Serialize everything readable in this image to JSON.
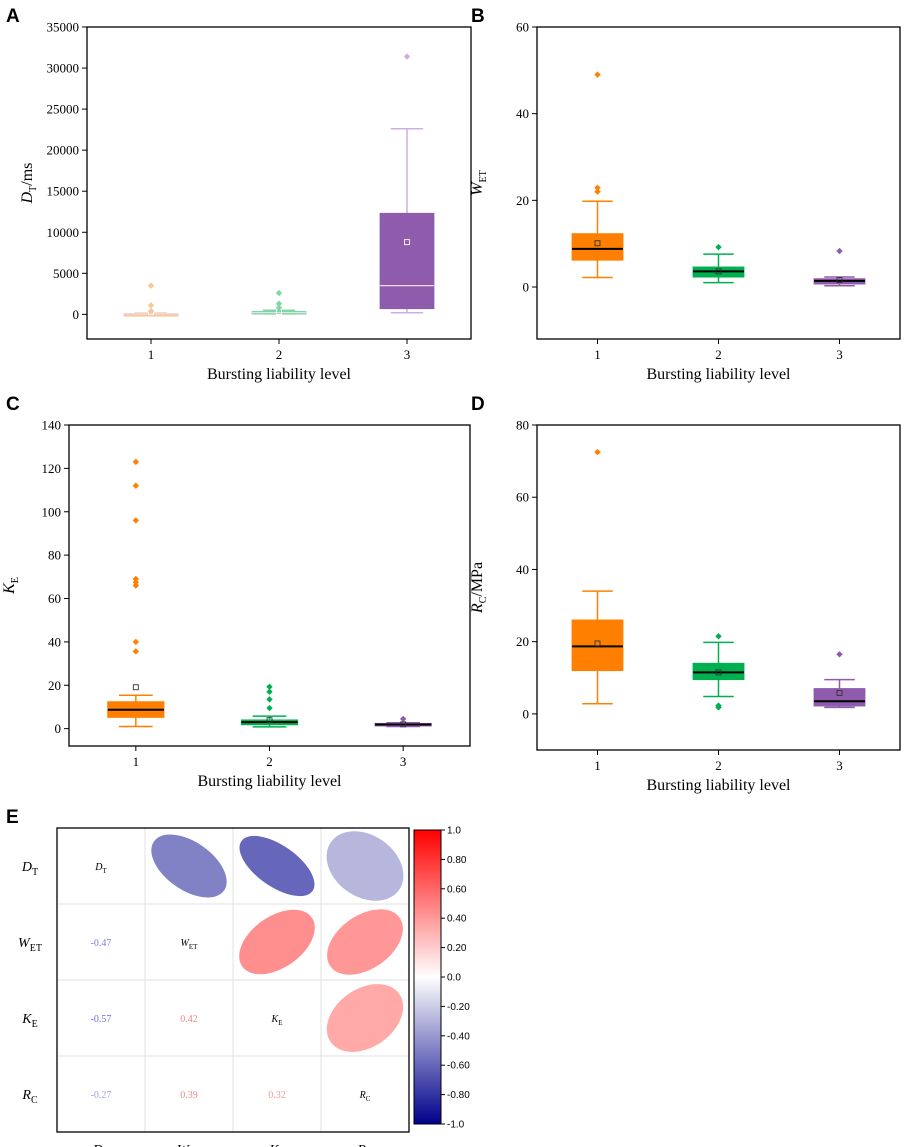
{
  "chart_data": [
    {
      "panel": "A",
      "type": "box",
      "xlabel": "Bursting liability level",
      "ylabel": {
        "main": "D",
        "sub": "T",
        "suffix": "/ms"
      },
      "ylim": [
        -3000,
        35000
      ],
      "yticks": [
        0,
        5000,
        10000,
        15000,
        20000,
        25000,
        30000,
        35000
      ],
      "categories": [
        "1",
        "2",
        "3"
      ],
      "colors": [
        "#F9C59A",
        "#7ED9A0",
        "#8E5BAD"
      ],
      "whisker_colors": [
        "#F9C59A",
        "#7ED9A0",
        "#CDB0DC"
      ],
      "boxes": [
        {
          "q1": 30,
          "median": 60,
          "q3": 100,
          "low": 0,
          "high": 150,
          "mean": 300,
          "outliers": [
            1100,
            400,
            3500
          ]
        },
        {
          "q1": 150,
          "median": 220,
          "q3": 350,
          "low": 60,
          "high": 500,
          "mean": 300,
          "outliers": [
            800,
            1300,
            2600
          ]
        },
        {
          "q1": 700,
          "median": 3500,
          "q3": 12300,
          "low": 200,
          "high": 22600,
          "mean": 8800,
          "outliers": [
            31400
          ]
        }
      ]
    },
    {
      "panel": "B",
      "type": "box",
      "xlabel": "Bursting liability level",
      "ylabel": {
        "main": "W",
        "sub": "ET",
        "suffix": ""
      },
      "ylim": [
        -12,
        60
      ],
      "yticks": [
        0,
        20,
        40,
        60
      ],
      "categories": [
        "1",
        "2",
        "3"
      ],
      "colors": [
        "#FF8000",
        "#00B050",
        "#8E5BAD"
      ],
      "whisker_colors": [
        "#FF8000",
        "#00B050",
        "#8E5BAD"
      ],
      "boxes": [
        {
          "q1": 6.2,
          "median": 8.8,
          "q3": 12.3,
          "low": 2.2,
          "high": 19.8,
          "mean": 10.1,
          "outliers": [
            22.0,
            22.9,
            49.0
          ]
        },
        {
          "q1": 2.3,
          "median": 3.6,
          "q3": 4.6,
          "low": 1.0,
          "high": 7.6,
          "mean": 3.6,
          "outliers": [
            9.2
          ]
        },
        {
          "q1": 0.7,
          "median": 1.4,
          "q3": 1.9,
          "low": 0.3,
          "high": 2.3,
          "mean": 1.6,
          "outliers": [
            8.3
          ]
        }
      ]
    },
    {
      "panel": "C",
      "type": "box",
      "xlabel": "Bursting liability level",
      "ylabel": {
        "main": "K",
        "sub": "E",
        "suffix": ""
      },
      "ylim": [
        -8,
        140
      ],
      "yticks": [
        0,
        20,
        40,
        60,
        80,
        100,
        120,
        140
      ],
      "categories": [
        "1",
        "2",
        "3"
      ],
      "colors": [
        "#FF8000",
        "#00B050",
        "#8E5BAD"
      ],
      "whisker_colors": [
        "#FF8000",
        "#00B050",
        "#8E5BAD"
      ],
      "boxes": [
        {
          "q1": 5.2,
          "median": 8.7,
          "q3": 12.4,
          "low": 1.0,
          "high": 15.4,
          "mean": 19.1,
          "outliers": [
            35.6,
            40.0,
            66.0,
            67.5,
            69.0,
            96.0,
            112.0,
            123.0
          ]
        },
        {
          "q1": 1.8,
          "median": 3.0,
          "q3": 4.0,
          "low": 0.8,
          "high": 5.8,
          "mean": 3.9,
          "outliers": [
            9.5,
            13.5,
            17.0,
            19.3
          ]
        },
        {
          "q1": 1.3,
          "median": 1.9,
          "q3": 2.4,
          "low": 1.0,
          "high": 2.7,
          "mean": 2.0,
          "outliers": [
            4.5
          ]
        }
      ]
    },
    {
      "panel": "D",
      "type": "box",
      "xlabel": "Bursting liability level",
      "ylabel": {
        "main": "R",
        "sub": "C",
        "suffix": "/MPa"
      },
      "ylim": [
        -10,
        80
      ],
      "yticks": [
        0,
        20,
        40,
        60,
        80
      ],
      "categories": [
        "1",
        "2",
        "3"
      ],
      "colors": [
        "#FF8000",
        "#00B050",
        "#8E5BAD"
      ],
      "whisker_colors": [
        "#FF8000",
        "#00B050",
        "#8E5BAD"
      ],
      "boxes": [
        {
          "q1": 12.0,
          "median": 18.7,
          "q3": 26.0,
          "low": 2.8,
          "high": 34.0,
          "mean": 19.5,
          "outliers": [
            72.5
          ]
        },
        {
          "q1": 9.5,
          "median": 11.5,
          "q3": 14.0,
          "low": 4.8,
          "high": 19.8,
          "mean": 11.5,
          "outliers": [
            1.8,
            2.3,
            21.5
          ]
        },
        {
          "q1": 2.2,
          "median": 3.5,
          "q3": 7.0,
          "low": 1.8,
          "high": 9.5,
          "mean": 5.8,
          "outliers": [
            16.5
          ]
        }
      ]
    },
    {
      "panel": "E",
      "type": "heatmap",
      "variables": [
        {
          "main": "D",
          "sub": "T"
        },
        {
          "main": "W",
          "sub": "ET"
        },
        {
          "main": "K",
          "sub": "E"
        },
        {
          "main": "R",
          "sub": "C"
        }
      ],
      "pairs": [
        {
          "i": 1,
          "j": 0,
          "value": -0.47,
          "label": "-0.47"
        },
        {
          "i": 2,
          "j": 0,
          "value": -0.57,
          "label": "-0.57"
        },
        {
          "i": 3,
          "j": 0,
          "value": -0.27,
          "label": "-0.27"
        },
        {
          "i": 2,
          "j": 1,
          "value": 0.42,
          "label": "0.42"
        },
        {
          "i": 3,
          "j": 1,
          "value": 0.39,
          "label": "0.39"
        },
        {
          "i": 3,
          "j": 2,
          "value": 0.32,
          "label": "0.32"
        }
      ],
      "colorbar": {
        "range": [
          -1.0,
          1.0
        ],
        "ticks": [
          "1.0",
          "0.80",
          "0.60",
          "0.40",
          "0.20",
          "0.0",
          "-0.20",
          "-0.40",
          "-0.60",
          "-0.80",
          "-1.0"
        ],
        "colors": [
          "#00008B",
          "#FFFFFF",
          "#FF0000"
        ]
      }
    }
  ],
  "panel_labels": [
    "A",
    "B",
    "C",
    "D",
    "E"
  ]
}
